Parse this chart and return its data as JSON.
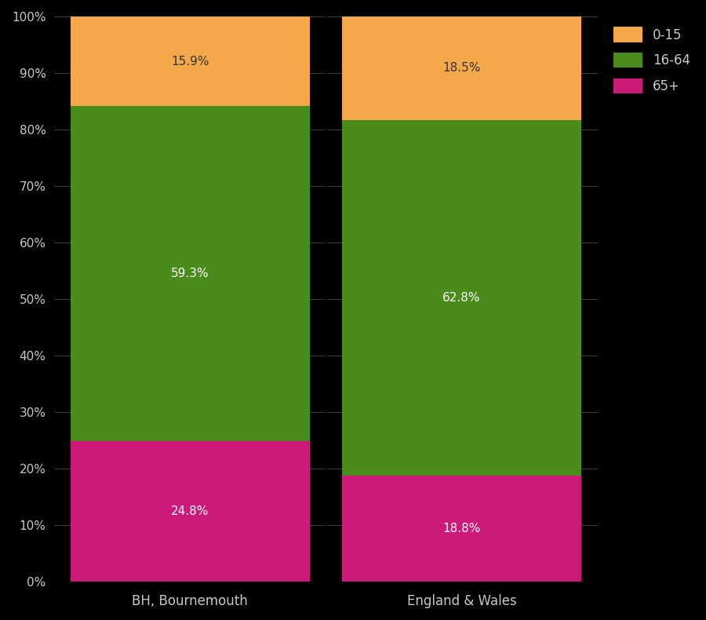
{
  "categories": [
    "BH, Bournemouth",
    "England & Wales"
  ],
  "segments": {
    "65+": [
      24.8,
      18.8
    ],
    "16-64": [
      59.3,
      62.8
    ],
    "0-15": [
      15.9,
      18.5
    ]
  },
  "colors": {
    "65+": "#cc1a7a",
    "16-64": "#4a8c1c",
    "0-15": "#f5a84a"
  },
  "labels": {
    "65+": [
      "24.8%",
      "18.8%"
    ],
    "16-64": [
      "59.3%",
      "62.8%"
    ],
    "0-15": [
      "15.9%",
      "18.5%"
    ]
  },
  "label_colors": {
    "65+": "white",
    "16-64": "white",
    "0-15": "#333333"
  },
  "background_color": "#000000",
  "text_color": "#c8c8c8",
  "bar_width": 0.88,
  "ylim": [
    0,
    1
  ],
  "yticks": [
    0,
    0.1,
    0.2,
    0.3,
    0.4,
    0.5,
    0.6,
    0.7,
    0.8,
    0.9,
    1.0
  ],
  "ytick_labels": [
    "0%",
    "10%",
    "20%",
    "30%",
    "40%",
    "50%",
    "60%",
    "70%",
    "80%",
    "90%",
    "100%"
  ],
  "legend_order": [
    "0-15",
    "16-64",
    "65+"
  ],
  "figsize": [
    9.0,
    7.9
  ],
  "dpi": 100
}
